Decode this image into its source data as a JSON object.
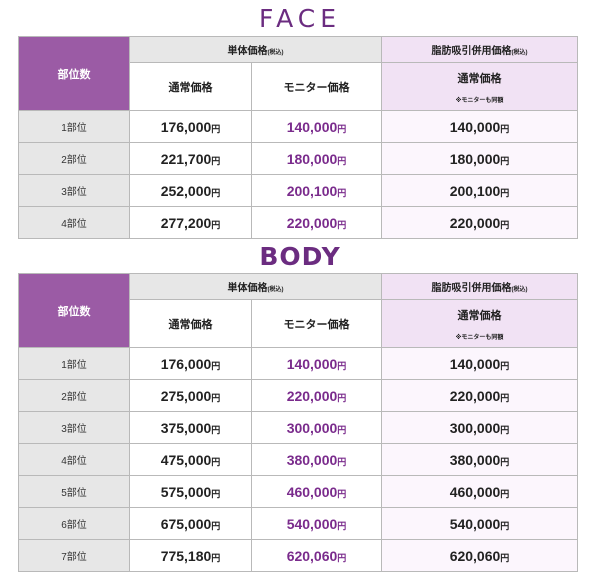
{
  "face": {
    "title": "FACE",
    "headers": {
      "part": "部位数",
      "single_group": "単体価格",
      "single_group_tax": "(税込)",
      "lipo_group": "脂肪吸引併用価格",
      "lipo_group_tax": "(税込)",
      "normal": "通常価格",
      "monitor": "モニター価格",
      "lipo_normal": "通常価格",
      "lipo_note": "※モニターも同額"
    },
    "yen": "円",
    "rows": [
      {
        "part": "1部位",
        "normal": "176,000",
        "monitor": "140,000",
        "lipo": "140,000"
      },
      {
        "part": "2部位",
        "normal": "221,700",
        "monitor": "180,000",
        "lipo": "180,000"
      },
      {
        "part": "3部位",
        "normal": "252,000",
        "monitor": "200,100",
        "lipo": "200,100"
      },
      {
        "part": "4部位",
        "normal": "277,200",
        "monitor": "220,000",
        "lipo": "220,000"
      }
    ]
  },
  "body": {
    "title": "BODY",
    "headers": {
      "part": "部位数",
      "single_group": "単体価格",
      "single_group_tax": "(税込)",
      "lipo_group": "脂肪吸引併用価格",
      "lipo_group_tax": "(税込)",
      "normal": "通常価格",
      "monitor": "モニター価格",
      "lipo_normal": "通常価格",
      "lipo_note": "※モニターも同額"
    },
    "yen": "円",
    "rows": [
      {
        "part": "1部位",
        "normal": "176,000",
        "monitor": "140,000",
        "lipo": "140,000"
      },
      {
        "part": "2部位",
        "normal": "275,000",
        "monitor": "220,000",
        "lipo": "220,000"
      },
      {
        "part": "3部位",
        "normal": "375,000",
        "monitor": "300,000",
        "lipo": "300,000"
      },
      {
        "part": "4部位",
        "normal": "475,000",
        "monitor": "380,000",
        "lipo": "380,000"
      },
      {
        "part": "5部位",
        "normal": "575,000",
        "monitor": "460,000",
        "lipo": "460,000"
      },
      {
        "part": "6部位",
        "normal": "675,000",
        "monitor": "540,000",
        "lipo": "540,000"
      },
      {
        "part": "7部位",
        "normal": "775,180",
        "monitor": "620,060",
        "lipo": "620,060"
      }
    ]
  },
  "colors": {
    "accent": "#6b2c80",
    "part_header": "#9b5ba5",
    "monitor_text": "#7a2b8c",
    "lipo_bg": "#f1e2f4",
    "row_label_bg": "#e7e7e7"
  }
}
